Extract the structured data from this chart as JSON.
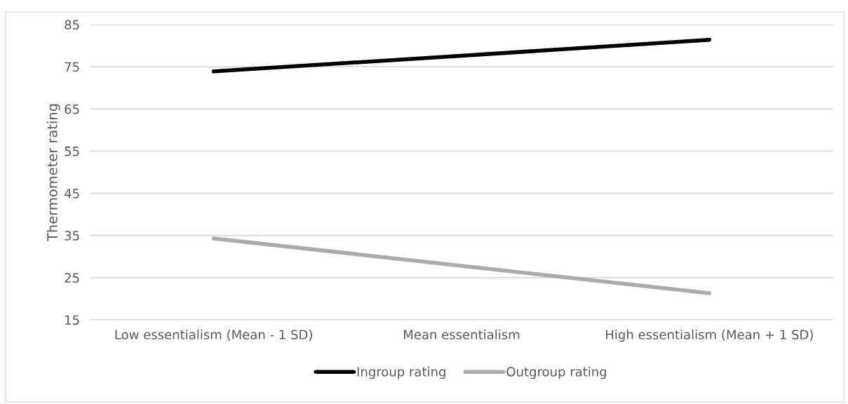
{
  "chart_data": {
    "type": "line",
    "ylabel": "Thermometer rating",
    "categories": [
      "Low essentialism (Mean - 1 SD)",
      "Mean essentialism",
      "High essentialism (Mean + 1 SD)"
    ],
    "series": [
      {
        "name": "Ingroup rating",
        "color": "#000000",
        "values": [
          73.9,
          77.6,
          81.4
        ]
      },
      {
        "name": "Outgroup rating",
        "color": "#aeaaaa",
        "values": [
          34.3,
          27.8,
          21.3
        ]
      }
    ],
    "ylim": [
      15,
      85
    ],
    "yticks": [
      15,
      25,
      35,
      45,
      55,
      65,
      75,
      85
    ],
    "grid": "y",
    "legend": "bottom",
    "marker": "none",
    "line_style": "solid"
  }
}
